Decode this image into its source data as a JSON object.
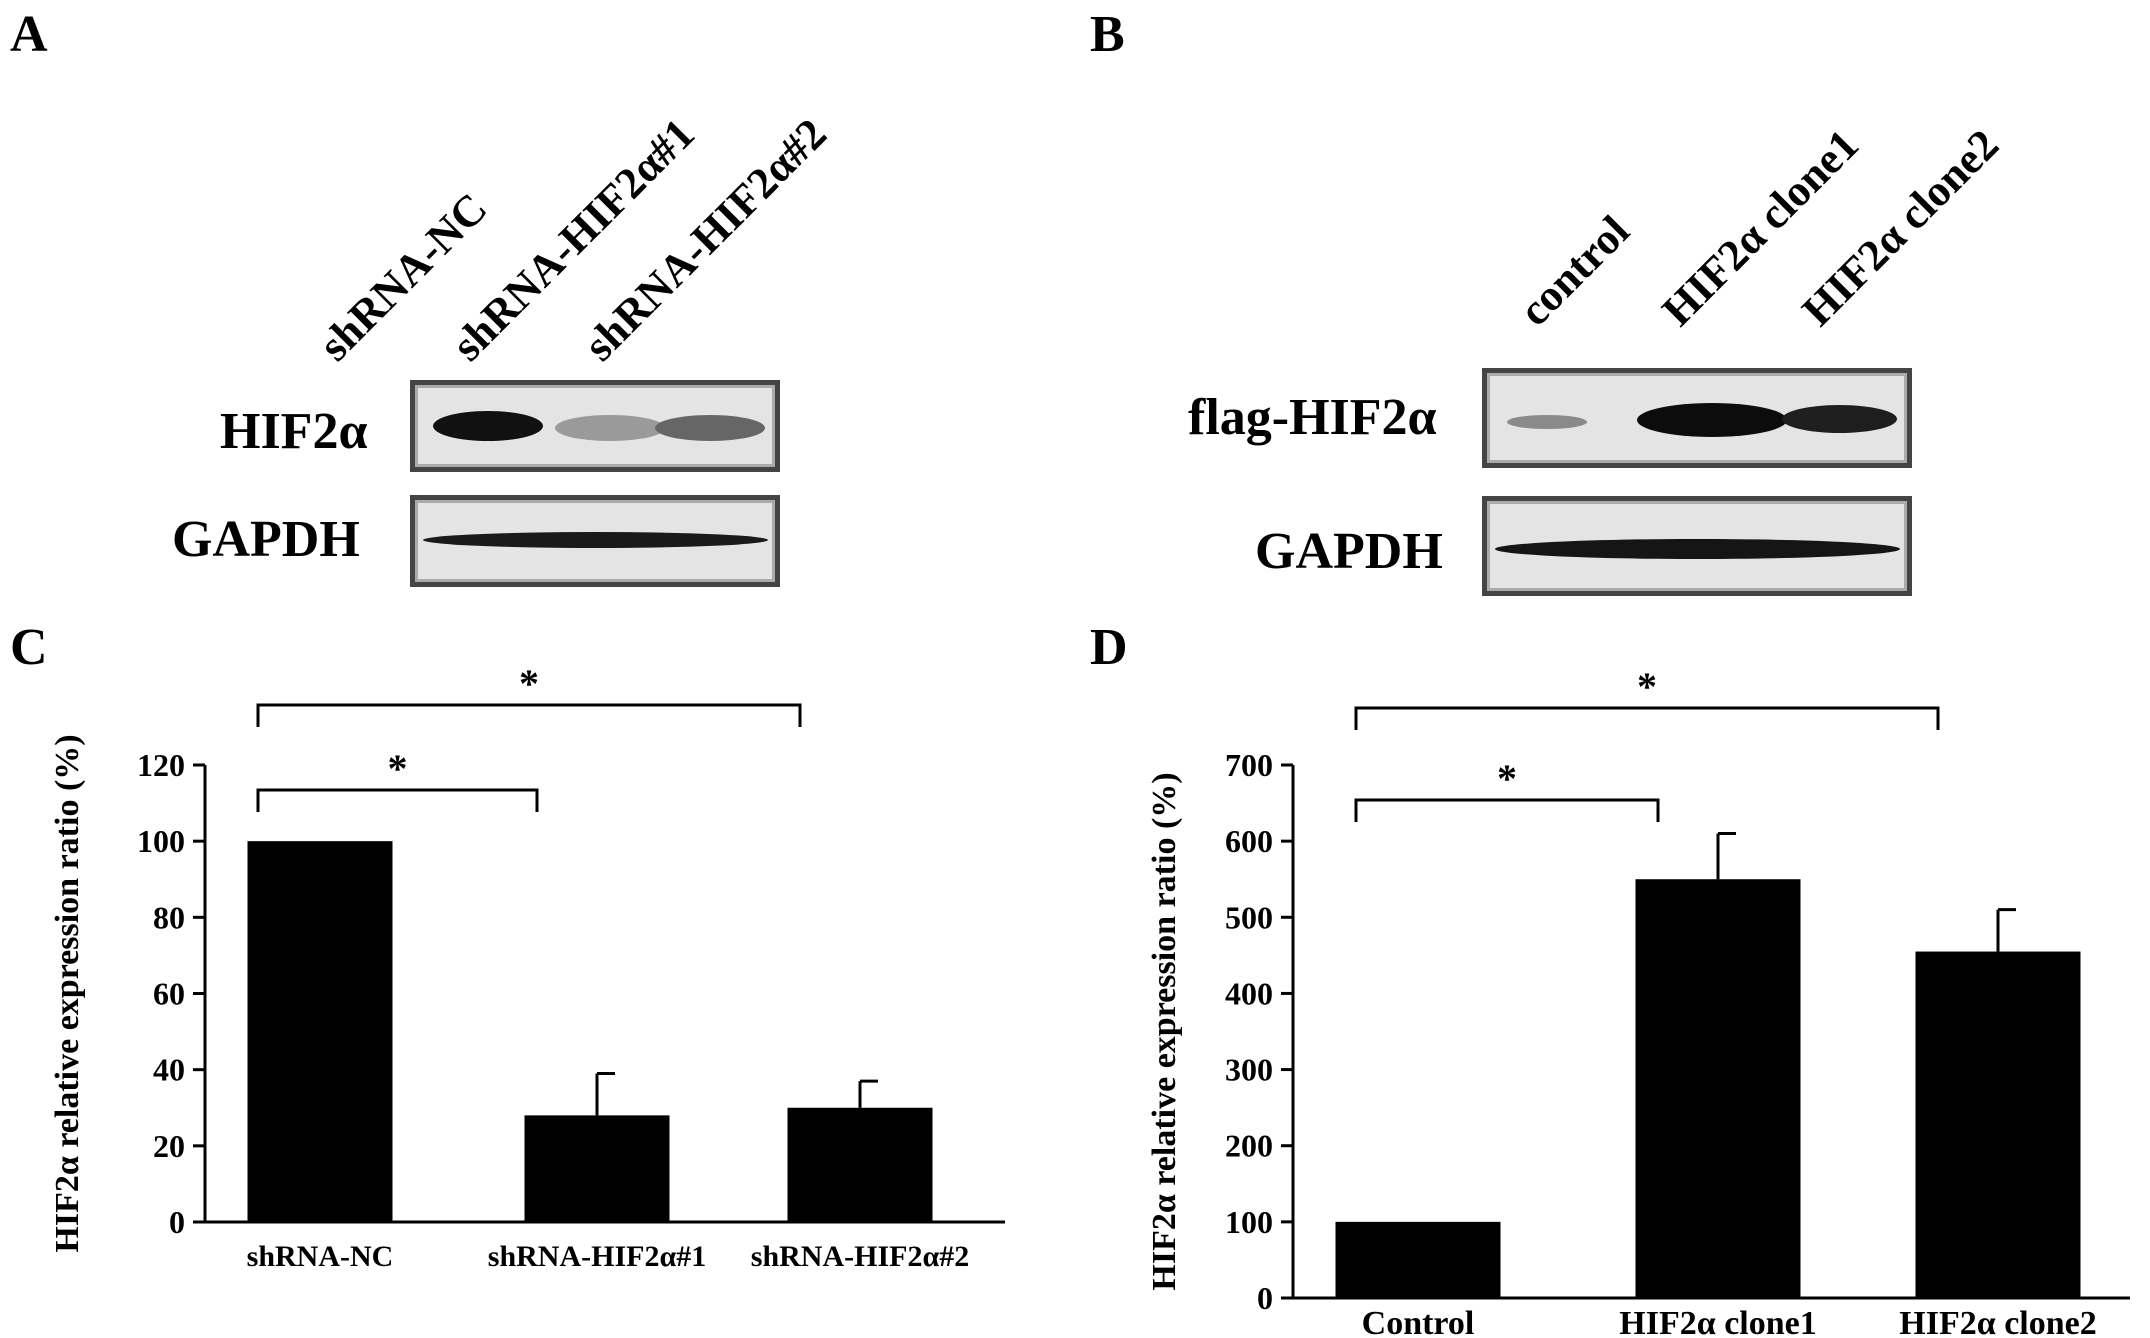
{
  "panel_a": {
    "letter": "A",
    "lanes": [
      "shRNA-NC",
      "shRNA-HIF2α#1",
      "shRNA-HIF2α#2"
    ],
    "rows": [
      "HIF2α",
      "GAPDH"
    ]
  },
  "panel_b": {
    "letter": "B",
    "lanes": [
      "control",
      "HIF2α clone1",
      "HIF2α clone2"
    ],
    "rows": [
      "flag-HIF2α",
      "GAPDH"
    ]
  },
  "colors": {
    "bar": "#000000",
    "blot_bg": "#e4e4e4",
    "blot_border": "#444444"
  },
  "chart_data": [
    {
      "panel": "C",
      "type": "bar",
      "categories": [
        "shRNA-NC",
        "shRNA-HIF2α#1",
        "shRNA-HIF2α#2"
      ],
      "values": [
        100,
        28,
        30
      ],
      "errors": [
        0,
        11,
        7
      ],
      "ylabel": "HIF2α relative expression ratio (%)",
      "ylim": [
        0,
        120
      ],
      "yticks": [
        0,
        20,
        40,
        60,
        80,
        100,
        120
      ],
      "significance": [
        {
          "from": 0,
          "to": 1,
          "label": "*"
        },
        {
          "from": 0,
          "to": 2,
          "label": "*"
        }
      ]
    },
    {
      "panel": "D",
      "type": "bar",
      "categories": [
        "Control",
        "HIF2α clone1",
        "HIF2α clone2"
      ],
      "values": [
        100,
        550,
        455
      ],
      "errors": [
        0,
        60,
        55
      ],
      "ylabel": "HIF2α relative expression ratio (%)",
      "ylim": [
        0,
        700
      ],
      "yticks": [
        0,
        100,
        200,
        300,
        400,
        500,
        600,
        700
      ],
      "significance": [
        {
          "from": 0,
          "to": 1,
          "label": "*"
        },
        {
          "from": 0,
          "to": 2,
          "label": "*"
        }
      ]
    }
  ]
}
